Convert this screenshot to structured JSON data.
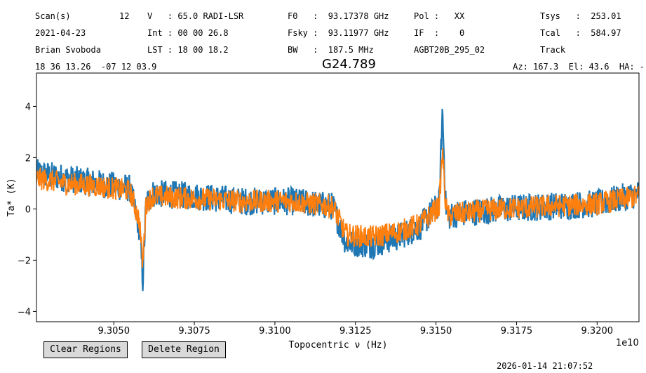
{
  "header": {
    "row1": {
      "scan_label": "Scan(s)",
      "scan_value": "12",
      "v": "V   : 65.0 RADI-LSR",
      "f0": "F0   :  93.17378 GHz",
      "pol": "Pol :   XX",
      "tsys": "Tsys   :  253.01"
    },
    "row2": {
      "date": "2021-04-23",
      "int": "Int : 00 00 26.8",
      "fsky": "Fsky :  93.11977 GHz",
      "if": "IF  :    0",
      "tcal": "Tcal   :  584.97"
    },
    "row3": {
      "observer": "Brian Svoboda",
      "lst": "LST : 18 00 18.2",
      "bw": "BW   :  187.5 MHz",
      "project": "AGBT20B_295_02",
      "track": "Track"
    },
    "coords": "18 36 13.26  -07 12 03.9",
    "source": "G24.789",
    "azel": "Az: 167.3  El: 43.6  HA: -"
  },
  "buttons": {
    "clear_regions": "Clear Regions",
    "delete_region": "Delete Region"
  },
  "timestamp": "2026-01-14 21:07:52",
  "chart_data": {
    "type": "line",
    "title": "G24.789",
    "xlabel": "Topocentric ν (Hz)",
    "ylabel": "Ta* (K)",
    "x_offset_label": "1e10",
    "xlim": [
      9.3026,
      9.3213
    ],
    "ylim": [
      -4.4,
      5.3
    ],
    "xticks": [
      9.305,
      9.3075,
      9.31,
      9.3125,
      9.315,
      9.3175,
      9.32
    ],
    "xtick_labels": [
      "9.3050",
      "9.3075",
      "9.3100",
      "9.3125",
      "9.3150",
      "9.3175",
      "9.3200"
    ],
    "yticks": [
      -4,
      -2,
      0,
      2,
      4
    ],
    "ytick_labels": [
      "−4",
      "−2",
      "0",
      "2",
      "4"
    ],
    "grid": false,
    "series": [
      {
        "color": "#1f77b4",
        "noise_amplitude": 0.55,
        "x": [
          9.3026,
          9.3035,
          9.3045,
          9.3055,
          9.3058,
          9.3059,
          9.306,
          9.3062,
          9.3075,
          9.309,
          9.3105,
          9.3118,
          9.3122,
          9.313,
          9.3138,
          9.3145,
          9.3151,
          9.3152,
          9.3153,
          9.3154,
          9.3156,
          9.317,
          9.3185,
          9.32,
          9.3213
        ],
        "y": [
          1.4,
          1.2,
          1.0,
          0.8,
          -0.8,
          -2.8,
          0.2,
          0.6,
          0.5,
          0.3,
          0.3,
          0.1,
          -1.3,
          -1.4,
          -1.1,
          -0.7,
          0.2,
          3.9,
          0.2,
          -0.3,
          -0.2,
          0.0,
          0.1,
          0.2,
          0.6
        ]
      },
      {
        "color": "#ff7f0e",
        "noise_amplitude": 0.45,
        "x": [
          9.3026,
          9.3035,
          9.3045,
          9.3055,
          9.3058,
          9.3059,
          9.306,
          9.3062,
          9.3075,
          9.309,
          9.3105,
          9.3118,
          9.3122,
          9.313,
          9.3138,
          9.3145,
          9.3151,
          9.3152,
          9.3153,
          9.3154,
          9.3156,
          9.317,
          9.3185,
          9.32,
          9.3213
        ],
        "y": [
          1.2,
          1.0,
          0.9,
          0.7,
          -0.5,
          -2.2,
          0.2,
          0.5,
          0.4,
          0.3,
          0.3,
          0.1,
          -1.0,
          -1.1,
          -0.9,
          -0.6,
          0.1,
          2.3,
          0.1,
          -0.3,
          -0.2,
          0.0,
          0.1,
          0.2,
          0.5
        ]
      }
    ]
  }
}
